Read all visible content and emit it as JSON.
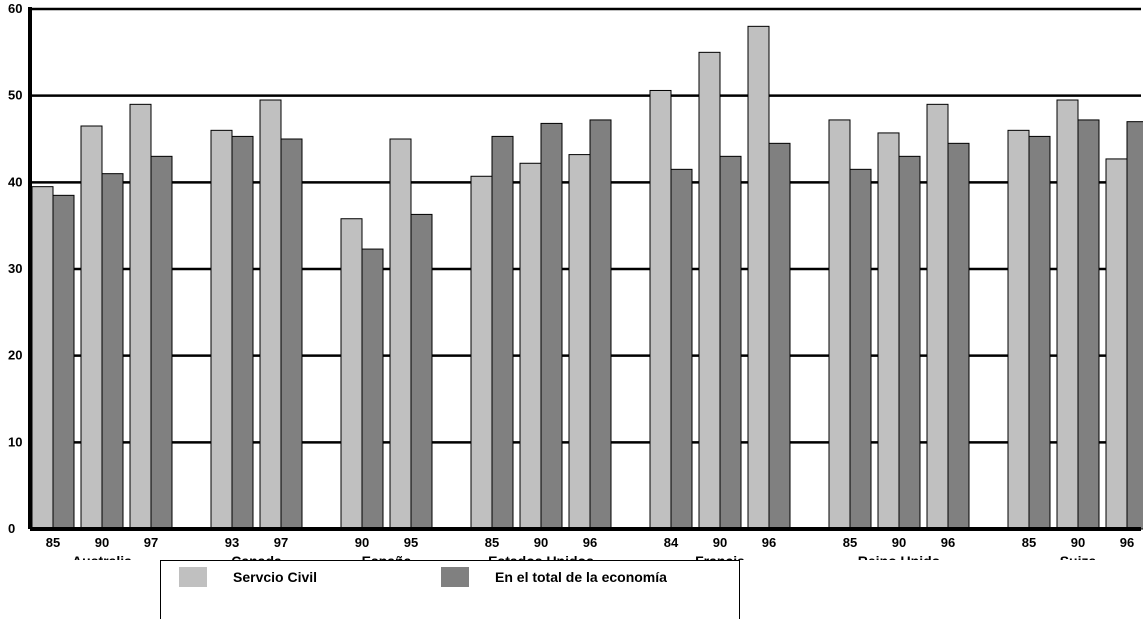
{
  "chart_data": {
    "type": "bar",
    "ylim": [
      0,
      60
    ],
    "yticks": [
      0,
      10,
      20,
      30,
      40,
      50,
      60
    ],
    "grid": true,
    "legend_position": "bottom",
    "colors": {
      "civil": "#c0c0c0",
      "total": "#808080",
      "axis": "#000000"
    },
    "series": [
      {
        "name": "Servcio Civil",
        "key": "civil"
      },
      {
        "name": "En el total de la economía",
        "key": "total"
      }
    ],
    "groups": [
      {
        "country": "Australia",
        "years": [
          {
            "year": "85",
            "civil": 39.5,
            "total": 38.5
          },
          {
            "year": "90",
            "civil": 46.5,
            "total": 41.0
          },
          {
            "year": "97",
            "civil": 49.0,
            "total": 43.0
          }
        ]
      },
      {
        "country": "Canada",
        "years": [
          {
            "year": "93",
            "civil": 46.0,
            "total": 45.3
          },
          {
            "year": "97",
            "civil": 49.5,
            "total": 45.0
          }
        ]
      },
      {
        "country": "España",
        "years": [
          {
            "year": "90",
            "civil": 35.8,
            "total": 32.3
          },
          {
            "year": "95",
            "civil": 45.0,
            "total": 36.3
          }
        ]
      },
      {
        "country": "Estados Unidos",
        "years": [
          {
            "year": "85",
            "civil": 40.7,
            "total": 45.3
          },
          {
            "year": "90",
            "civil": 42.2,
            "total": 46.8
          },
          {
            "year": "96",
            "civil": 43.2,
            "total": 47.2
          }
        ]
      },
      {
        "country": "Francia",
        "years": [
          {
            "year": "84",
            "civil": 50.6,
            "total": 41.5
          },
          {
            "year": "90",
            "civil": 55.0,
            "total": 43.0
          },
          {
            "year": "96",
            "civil": 58.0,
            "total": 44.5
          }
        ]
      },
      {
        "country": "Reino Unido",
        "years": [
          {
            "year": "85",
            "civil": 47.2,
            "total": 41.5
          },
          {
            "year": "90",
            "civil": 45.7,
            "total": 43.0
          },
          {
            "year": "96",
            "civil": 49.0,
            "total": 44.5
          }
        ]
      },
      {
        "country": "Suiza",
        "years": [
          {
            "year": "85",
            "civil": 46.0,
            "total": 45.3
          },
          {
            "year": "90",
            "civil": 49.5,
            "total": 47.2
          },
          {
            "year": "96",
            "civil": 42.7,
            "total": 47.0
          }
        ]
      }
    ]
  }
}
